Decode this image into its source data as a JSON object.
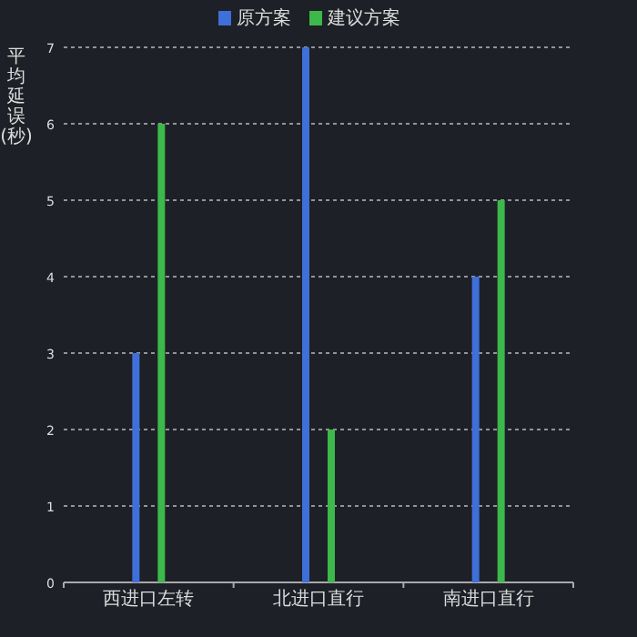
{
  "chart_data": {
    "type": "bar",
    "ylabel": "平均延误(秒)",
    "categories": [
      "西进口左转",
      "北进口直行",
      "南进口直行"
    ],
    "series": [
      {
        "name": "原方案",
        "color": "#3f6fd8",
        "values": [
          3,
          7,
          4
        ]
      },
      {
        "name": "建议方案",
        "color": "#3db84a",
        "values": [
          6,
          2,
          5
        ]
      }
    ],
    "ylim": [
      0,
      7
    ],
    "yticks": [
      0,
      1,
      2,
      3,
      4,
      5,
      6,
      7
    ],
    "grid": "y",
    "legend": "top"
  }
}
